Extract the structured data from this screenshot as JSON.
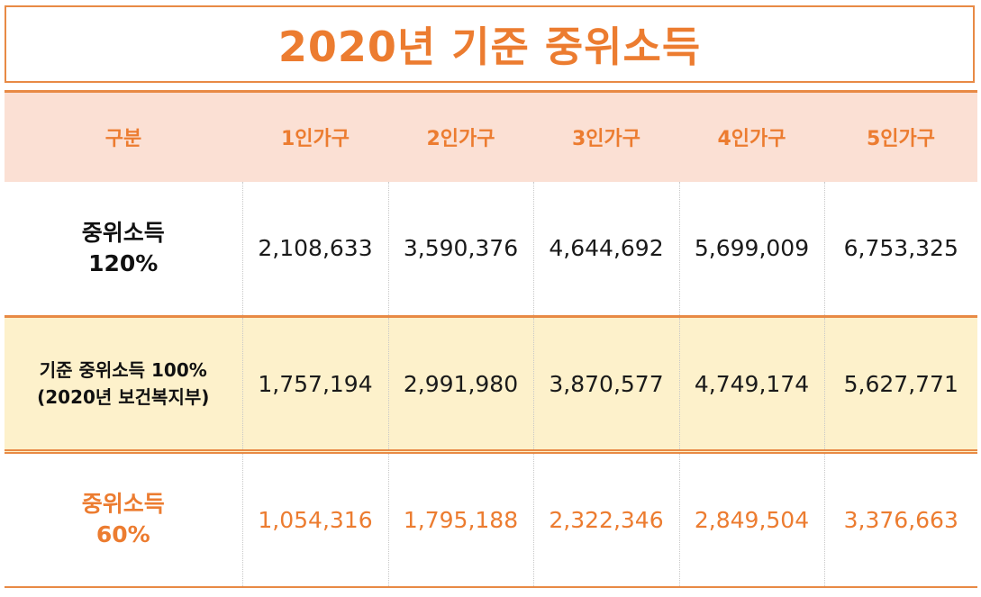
{
  "title": "2020년 기준 중위소득",
  "table": {
    "headers": [
      "구분",
      "1인가구",
      "2인가구",
      "3인가구",
      "4인가구",
      "5인가구"
    ],
    "rows": [
      {
        "label_line1": "중위소득",
        "label_line2": "120%",
        "values": [
          "2,108,633",
          "3,590,376",
          "4,644,692",
          "5,699,009",
          "6,753,325"
        ]
      },
      {
        "label_line1": "기준 중위소득 100%",
        "label_line2": "(2020년 보건복지부)",
        "values": [
          "1,757,194",
          "2,991,980",
          "3,870,577",
          "4,749,174",
          "5,627,771"
        ]
      },
      {
        "label_line1": "중위소득",
        "label_line2": "60%",
        "values": [
          "1,054,316",
          "1,795,188",
          "2,322,346",
          "2,849,504",
          "3,376,663"
        ]
      }
    ]
  },
  "colors": {
    "accent_orange": "#ec7c30",
    "border_orange": "#e88a45",
    "header_bg": "#fbe0d4",
    "highlight_row_bg": "#fdf1cb"
  }
}
